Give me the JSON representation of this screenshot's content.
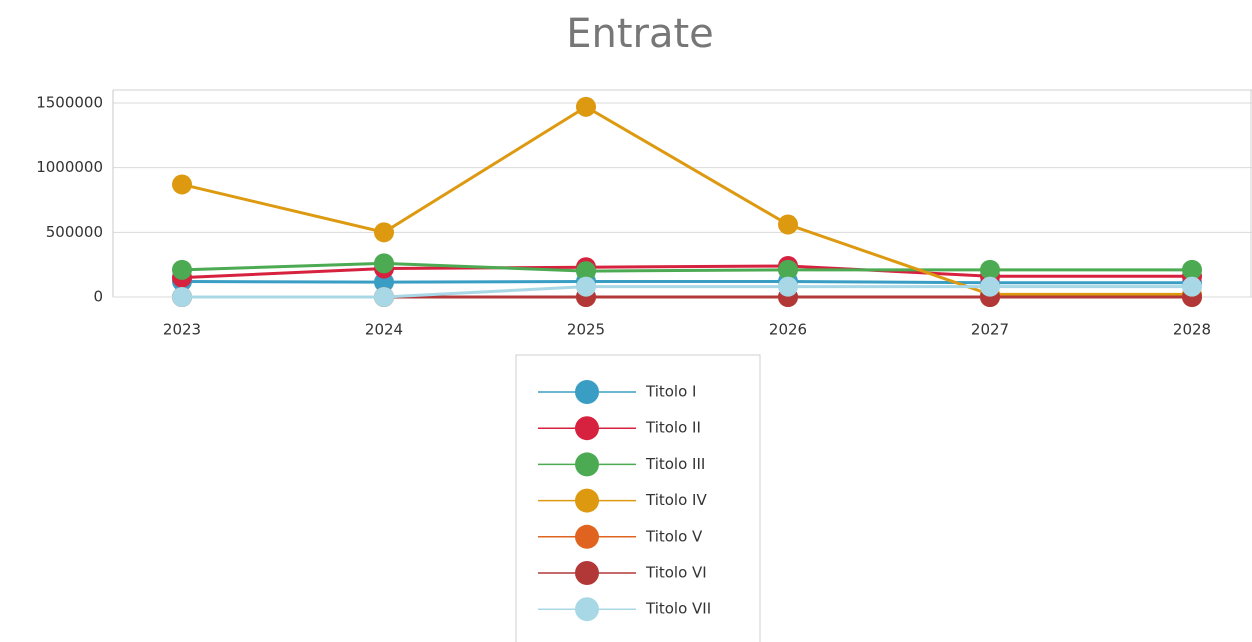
{
  "chart_data": {
    "type": "line",
    "title": "Entrate",
    "categories": [
      "2023",
      "2024",
      "2025",
      "2026",
      "2027",
      "2028"
    ],
    "series": [
      {
        "name": "Titolo I",
        "color": "#3a9ec4",
        "values": [
          120000,
          115000,
          120000,
          120000,
          110000,
          110000
        ]
      },
      {
        "name": "Titolo II",
        "color": "#d6213f",
        "values": [
          150000,
          220000,
          230000,
          240000,
          160000,
          160000
        ]
      },
      {
        "name": "Titolo III",
        "color": "#4caa52",
        "values": [
          210000,
          260000,
          200000,
          210000,
          210000,
          210000
        ]
      },
      {
        "name": "Titolo IV",
        "color": "#dd9a10",
        "values": [
          870000,
          500000,
          1470000,
          560000,
          20000,
          20000
        ]
      },
      {
        "name": "Titolo V",
        "color": "#e0641f",
        "values": [
          0,
          0,
          0,
          0,
          0,
          0
        ]
      },
      {
        "name": "Titolo VI",
        "color": "#b23838",
        "values": [
          0,
          0,
          0,
          0,
          0,
          0
        ]
      },
      {
        "name": "Titolo VII",
        "color": "#a8d8e6",
        "values": [
          0,
          0,
          80000,
          80000,
          80000,
          80000
        ]
      }
    ],
    "ylim": [
      0,
      1600000
    ],
    "yticks": [
      0,
      500000,
      1000000,
      1500000
    ],
    "grid": true
  }
}
